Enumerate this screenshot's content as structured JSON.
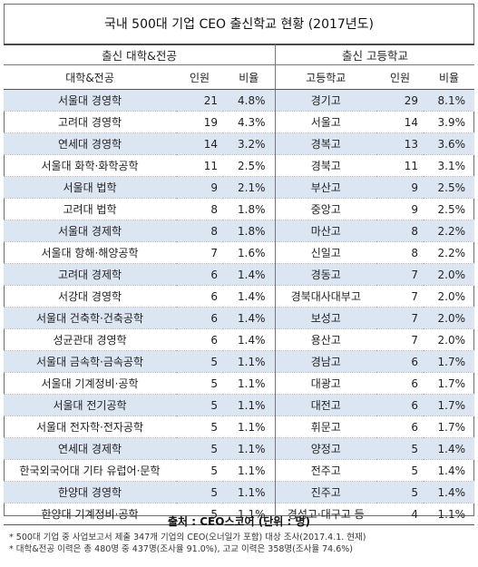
{
  "title": "국내 500대 기업 CEO 출신학교 현황 (2017년도)",
  "groups": {
    "university": "출신 대학&전공",
    "highschool": "출신 고등학교"
  },
  "columns": {
    "major": "대학&전공",
    "count1": "인원",
    "ratio1": "비율",
    "school": "고등학교",
    "count2": "인원",
    "ratio2": "비율"
  },
  "rows": [
    {
      "major": "서울대 경영학",
      "count1": "21",
      "ratio1": "4.8%",
      "school": "경기고",
      "count2": "29",
      "ratio2": "8.1%"
    },
    {
      "major": "고려대 경영학",
      "count1": "19",
      "ratio1": "4.3%",
      "school": "서울고",
      "count2": "14",
      "ratio2": "3.9%"
    },
    {
      "major": "연세대 경영학",
      "count1": "14",
      "ratio1": "3.2%",
      "school": "경복고",
      "count2": "13",
      "ratio2": "3.6%"
    },
    {
      "major": "서울대 화학·화학공학",
      "count1": "11",
      "ratio1": "2.5%",
      "school": "경북고",
      "count2": "11",
      "ratio2": "3.1%"
    },
    {
      "major": "서울대 법학",
      "count1": "9",
      "ratio1": "2.1%",
      "school": "부산고",
      "count2": "9",
      "ratio2": "2.5%"
    },
    {
      "major": "고려대 법학",
      "count1": "8",
      "ratio1": "1.8%",
      "school": "중앙고",
      "count2": "9",
      "ratio2": "2.5%"
    },
    {
      "major": "서울대 경제학",
      "count1": "8",
      "ratio1": "1.8%",
      "school": "마산고",
      "count2": "8",
      "ratio2": "2.2%"
    },
    {
      "major": "서울대 항해·해양공학",
      "count1": "7",
      "ratio1": "1.6%",
      "school": "신일고",
      "count2": "8",
      "ratio2": "2.2%"
    },
    {
      "major": "고려대 경제학",
      "count1": "6",
      "ratio1": "1.4%",
      "school": "경동고",
      "count2": "7",
      "ratio2": "2.0%"
    },
    {
      "major": "서강대 경영학",
      "count1": "6",
      "ratio1": "1.4%",
      "school": "경북대사대부고",
      "count2": "7",
      "ratio2": "2.0%"
    },
    {
      "major": "서울대 건축학·건축공학",
      "count1": "6",
      "ratio1": "1.4%",
      "school": "보성고",
      "count2": "7",
      "ratio2": "2.0%"
    },
    {
      "major": "성균관대 경영학",
      "count1": "6",
      "ratio1": "1.4%",
      "school": "용산고",
      "count2": "7",
      "ratio2": "2.0%"
    },
    {
      "major": "서울대 금속학·금속공학",
      "count1": "5",
      "ratio1": "1.1%",
      "school": "경남고",
      "count2": "6",
      "ratio2": "1.7%"
    },
    {
      "major": "서울대 기계정비·공학",
      "count1": "5",
      "ratio1": "1.1%",
      "school": "대광고",
      "count2": "6",
      "ratio2": "1.7%"
    },
    {
      "major": "서울대 전기공학",
      "count1": "5",
      "ratio1": "1.1%",
      "school": "대전고",
      "count2": "6",
      "ratio2": "1.7%"
    },
    {
      "major": "서울대 전자학·전자공학",
      "count1": "5",
      "ratio1": "1.1%",
      "school": "휘문고",
      "count2": "6",
      "ratio2": "1.7%"
    },
    {
      "major": "연세대 경제학",
      "count1": "5",
      "ratio1": "1.1%",
      "school": "양정고",
      "count2": "5",
      "ratio2": "1.4%"
    },
    {
      "major": "한국외국어대 기타 유럽어·문학",
      "count1": "5",
      "ratio1": "1.1%",
      "school": "전주고",
      "count2": "5",
      "ratio2": "1.4%"
    },
    {
      "major": "한양대 경영학",
      "count1": "5",
      "ratio1": "1.1%",
      "school": "진주고",
      "count2": "5",
      "ratio2": "1.4%"
    },
    {
      "major": "한양대 기계정비·공학",
      "count1": "5",
      "ratio1": "1.1%",
      "school": "경성고·대구고 등",
      "count2": "4",
      "ratio2": "1.1%"
    }
  ],
  "source": "출처 : CEO스코어 (단위 : 명)",
  "notes": [
    "* 500대 기업 중 사업보고서 제출 347개 기업의 CEO(오너일가 포함) 대상 조사(2017.4.1. 현재)",
    "* 대학&전공 이력은 총 480명 중 437명(조사율 91.0%), 고교 이력은 358명(조사율 74.6%)"
  ]
}
